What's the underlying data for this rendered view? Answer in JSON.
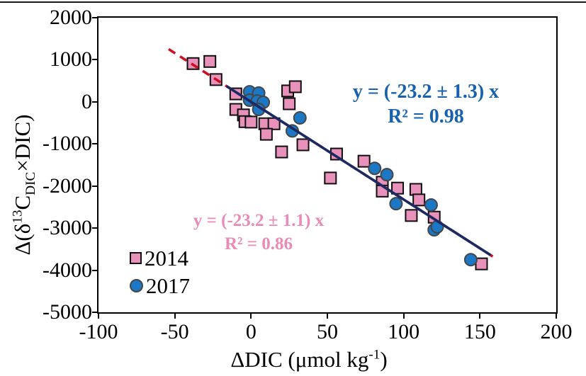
{
  "figure": {
    "background": "#ffffff",
    "top_rule_color": "#1a1a1a"
  },
  "axes": {
    "x": {
      "title_main": "ΔDIC (μmol kg",
      "title_sup": "-1",
      "title_close": ")",
      "min": -100,
      "max": 200,
      "ticks": [
        -100,
        -50,
        0,
        50,
        100,
        150,
        200
      ]
    },
    "y": {
      "title_p1": "Δ(δ",
      "title_sup": "13",
      "title_p2": "C",
      "title_sub": "DIC",
      "title_p3": "×DIC)",
      "min": -5000,
      "max": 2000,
      "ticks": [
        2000,
        1000,
        0,
        -1000,
        -2000,
        -3000,
        -4000,
        -5000
      ]
    }
  },
  "legend": {
    "items": [
      {
        "label": "2014",
        "marker": "square"
      },
      {
        "label": "2017",
        "marker": "circle"
      }
    ]
  },
  "annotations": {
    "fit_2017": {
      "line1": "y = (-23.2 ± 1.3) x",
      "line2": "R² = 0.98",
      "color": "#1761AE"
    },
    "fit_2014": {
      "line1": "y = (-23.2 ± 1.1) x",
      "line2": "R² = 0.86",
      "color": "#E98BB7"
    }
  },
  "colors": {
    "square_fill": "#E791BB",
    "square_border": "#0f0f0f",
    "circle_fill": "#1C77C4",
    "circle_border": "#464646",
    "dashed_line": "#CC1122",
    "solid_line": "#1B2A63",
    "axis": "#000000"
  },
  "chart_data": {
    "type": "scatter",
    "title": "",
    "xlabel": "ΔDIC (μmol kg⁻¹)",
    "ylabel": "Δ(δ¹³C_DIC×DIC)",
    "xlim": [
      -100,
      200
    ],
    "ylim": [
      -5000,
      2000
    ],
    "grid": false,
    "legend_position": "lower-left-inside",
    "series": [
      {
        "name": "2014",
        "marker": "square",
        "color": "#E791BB",
        "points": [
          [
            -38,
            910
          ],
          [
            -27,
            960
          ],
          [
            -23,
            530
          ],
          [
            -10,
            190
          ],
          [
            -10,
            -180
          ],
          [
            -5,
            -310
          ],
          [
            -4,
            -470
          ],
          [
            0,
            -480
          ],
          [
            9,
            -520
          ],
          [
            15,
            -520
          ],
          [
            10,
            -770
          ],
          [
            20,
            -1190
          ],
          [
            34,
            -1020
          ],
          [
            24,
            260
          ],
          [
            29,
            360
          ],
          [
            25,
            -45
          ],
          [
            52,
            -1810
          ],
          [
            56,
            -1240
          ],
          [
            74,
            -1410
          ],
          [
            86,
            -1910
          ],
          [
            86,
            -2120
          ],
          [
            96,
            -2050
          ],
          [
            108,
            -2080
          ],
          [
            110,
            -2330
          ],
          [
            105,
            -2700
          ],
          [
            120,
            -2740
          ],
          [
            151,
            -3850
          ]
        ]
      },
      {
        "name": "2017",
        "marker": "circle",
        "color": "#1C77C4",
        "points": [
          [
            -1,
            240
          ],
          [
            5,
            210
          ],
          [
            -1,
            40
          ],
          [
            4,
            20
          ],
          [
            8,
            -10
          ],
          [
            5,
            -180
          ],
          [
            32,
            -380
          ],
          [
            27,
            -690
          ],
          [
            81,
            -1580
          ],
          [
            89,
            -1730
          ],
          [
            95,
            -2420
          ],
          [
            118,
            -2450
          ],
          [
            120,
            -3040
          ],
          [
            122,
            -2970
          ],
          [
            144,
            -3750
          ]
        ]
      }
    ],
    "fit_lines": [
      {
        "name": "2014",
        "style": "dashed",
        "color": "#CC1122",
        "slope": -23.2,
        "intercept": 0,
        "x_range": [
          -54,
          159
        ],
        "equation": "y = (-23.2 ± 1.1) x",
        "r_squared": 0.86
      },
      {
        "name": "2017",
        "style": "solid",
        "color": "#1B2A63",
        "slope": -23.2,
        "intercept": 0,
        "x_range": [
          -16,
          157
        ],
        "equation": "y = (-23.2 ± 1.3) x",
        "r_squared": 0.98
      }
    ]
  }
}
